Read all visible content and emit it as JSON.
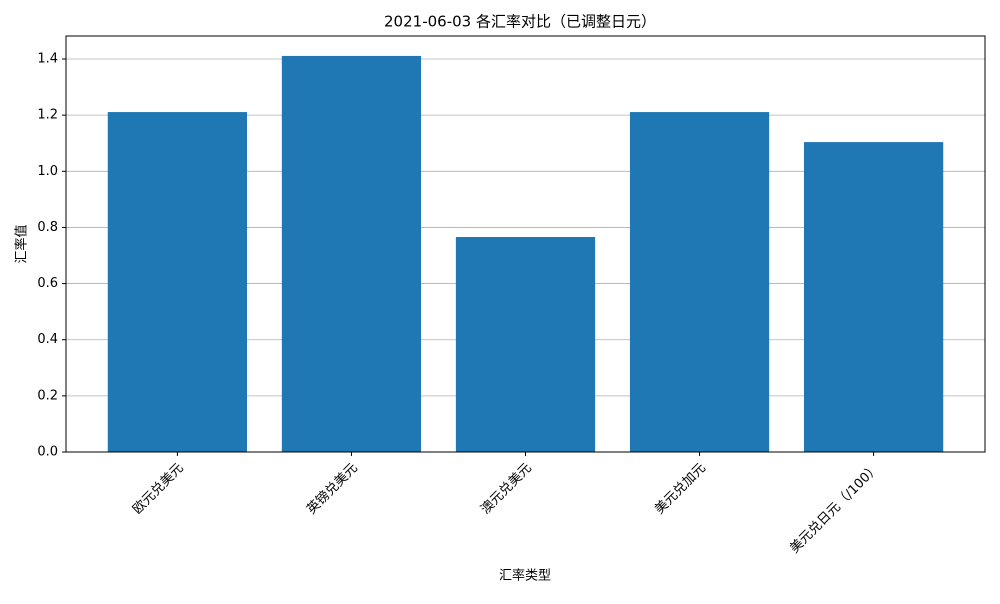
{
  "chart_data": {
    "type": "bar",
    "title": "2021-06-03 各汇率对比（已调整日元）",
    "x_label": "汇率类型",
    "y_label": "汇率值",
    "categories": [
      "欧元兑美元",
      "英镑兑美元",
      "澳元兑美元",
      "美元兑加元",
      "美元兑日元（/100）"
    ],
    "values": [
      1.211,
      1.411,
      0.766,
      1.211,
      1.104
    ],
    "color": "#1f77b4",
    "ylim": [
      0,
      1.482
    ],
    "yticks": [
      {
        "value": 0,
        "label": "0.0"
      },
      0.2,
      0.4,
      0.6,
      0.8,
      {
        "value": 1,
        "label": "1.0"
      },
      1.2,
      1.4
    ],
    "grid": true
  }
}
